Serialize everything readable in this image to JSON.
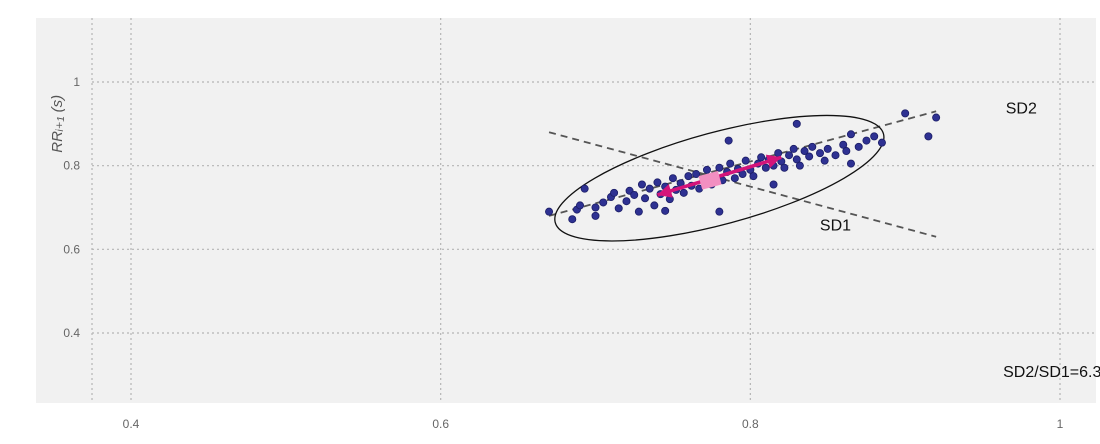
{
  "chart_data": {
    "type": "scatter",
    "title": "",
    "xlabel": "",
    "ylabel": "RRᵢ₊₁ (s)",
    "xlim": [
      0.37,
      1.04
    ],
    "ylim": [
      0.23,
      1.18
    ],
    "x_ticks": [
      0.4,
      0.6,
      0.8,
      1
    ],
    "x_tick_labels": [
      "0.4",
      "0.6",
      "0.8",
      "1"
    ],
    "y_ticks": [
      0.4,
      0.6,
      0.8,
      1
    ],
    "y_tick_labels": [
      "0.4",
      "0.6",
      "0.8",
      "1"
    ],
    "grid": true,
    "colors": {
      "plot_bg": "#f1f1f1",
      "grid": "#b5b5b5",
      "points": "#2e3192",
      "point_edge": "#1b1d66",
      "arrows": "#d4147a",
      "center_marker": "#f28fc1",
      "ellipse": "#111111",
      "dashed_lines": "#555555"
    },
    "ellipse": {
      "center": [
        0.78,
        0.77
      ],
      "sd2_axis_from": [
        0.67,
        0.68
      ],
      "sd2_axis_to": [
        0.92,
        0.93
      ],
      "sd1_axis_from": [
        0.67,
        0.88
      ],
      "sd1_axis_to": [
        0.92,
        0.63
      ]
    },
    "sd2_arrow": {
      "from": [
        0.74,
        0.73
      ],
      "to": [
        0.82,
        0.82
      ]
    },
    "center_marker": [
      0.774,
      0.765
    ],
    "annotations": [
      {
        "id": "sd2",
        "text": "SD2",
        "x": 0.975,
        "y": 0.925
      },
      {
        "id": "sd1",
        "text": "SD1",
        "x": 0.855,
        "y": 0.645
      },
      {
        "id": "ratio",
        "text": "SD2/SD1=6.3",
        "x": 0.995,
        "y": 0.295
      }
    ],
    "points": [
      [
        0.67,
        0.69
      ],
      [
        0.685,
        0.672
      ],
      [
        0.688,
        0.695
      ],
      [
        0.69,
        0.705
      ],
      [
        0.693,
        0.745
      ],
      [
        0.7,
        0.7
      ],
      [
        0.705,
        0.712
      ],
      [
        0.71,
        0.725
      ],
      [
        0.712,
        0.735
      ],
      [
        0.715,
        0.698
      ],
      [
        0.72,
        0.715
      ],
      [
        0.722,
        0.74
      ],
      [
        0.725,
        0.73
      ],
      [
        0.728,
        0.69
      ],
      [
        0.73,
        0.755
      ],
      [
        0.732,
        0.722
      ],
      [
        0.735,
        0.745
      ],
      [
        0.738,
        0.705
      ],
      [
        0.74,
        0.76
      ],
      [
        0.742,
        0.732
      ],
      [
        0.745,
        0.75
      ],
      [
        0.748,
        0.72
      ],
      [
        0.75,
        0.77
      ],
      [
        0.752,
        0.742
      ],
      [
        0.755,
        0.758
      ],
      [
        0.757,
        0.735
      ],
      [
        0.76,
        0.775
      ],
      [
        0.762,
        0.752
      ],
      [
        0.765,
        0.78
      ],
      [
        0.767,
        0.745
      ],
      [
        0.77,
        0.765
      ],
      [
        0.772,
        0.79
      ],
      [
        0.775,
        0.755
      ],
      [
        0.777,
        0.775
      ],
      [
        0.78,
        0.795
      ],
      [
        0.782,
        0.765
      ],
      [
        0.785,
        0.785
      ],
      [
        0.787,
        0.805
      ],
      [
        0.79,
        0.77
      ],
      [
        0.792,
        0.792
      ],
      [
        0.795,
        0.78
      ],
      [
        0.797,
        0.812
      ],
      [
        0.8,
        0.79
      ],
      [
        0.802,
        0.775
      ],
      [
        0.805,
        0.805
      ],
      [
        0.807,
        0.82
      ],
      [
        0.81,
        0.795
      ],
      [
        0.812,
        0.815
      ],
      [
        0.815,
        0.8
      ],
      [
        0.818,
        0.83
      ],
      [
        0.82,
        0.81
      ],
      [
        0.822,
        0.795
      ],
      [
        0.825,
        0.825
      ],
      [
        0.828,
        0.84
      ],
      [
        0.83,
        0.815
      ],
      [
        0.832,
        0.8
      ],
      [
        0.835,
        0.835
      ],
      [
        0.838,
        0.822
      ],
      [
        0.84,
        0.845
      ],
      [
        0.845,
        0.83
      ],
      [
        0.848,
        0.812
      ],
      [
        0.85,
        0.84
      ],
      [
        0.855,
        0.825
      ],
      [
        0.86,
        0.85
      ],
      [
        0.862,
        0.835
      ],
      [
        0.865,
        0.875
      ],
      [
        0.87,
        0.845
      ],
      [
        0.875,
        0.86
      ],
      [
        0.88,
        0.87
      ],
      [
        0.885,
        0.855
      ],
      [
        0.9,
        0.925
      ],
      [
        0.915,
        0.87
      ],
      [
        0.92,
        0.915
      ],
      [
        0.83,
        0.9
      ],
      [
        0.786,
        0.86
      ],
      [
        0.78,
        0.69
      ],
      [
        0.745,
        0.692
      ],
      [
        0.815,
        0.755
      ],
      [
        0.865,
        0.805
      ],
      [
        0.7,
        0.68
      ]
    ]
  }
}
